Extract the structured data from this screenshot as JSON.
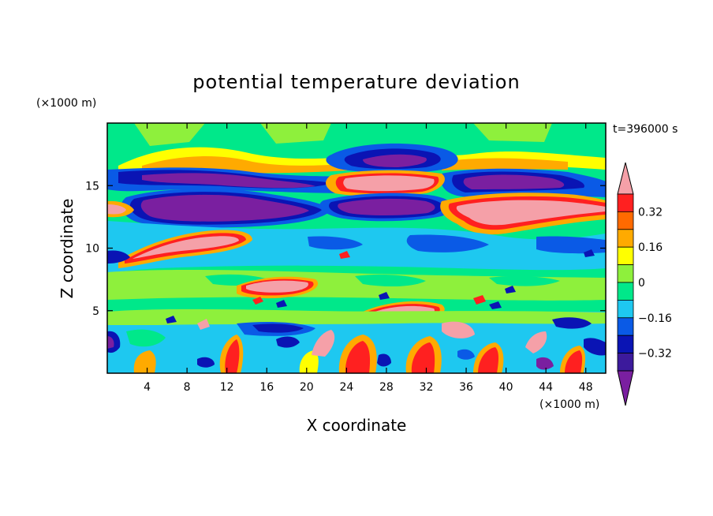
{
  "chart_data": {
    "type": "heatmap",
    "title": "potential temperature deviation",
    "xlabel": "X coordinate",
    "ylabel": "Z coordinate",
    "x_unit": "(×1000 m)",
    "y_unit": "(×1000 m)",
    "time_label": "t=396000 s",
    "xlim": [
      0,
      50
    ],
    "ylim": [
      0,
      20
    ],
    "x_ticks": [
      4,
      8,
      12,
      16,
      20,
      24,
      28,
      32,
      36,
      40,
      44,
      48
    ],
    "y_ticks": [
      5,
      10,
      15
    ],
    "colorbar": {
      "levels": [
        -0.4,
        -0.32,
        -0.24,
        -0.16,
        -0.08,
        0,
        0.08,
        0.16,
        0.24,
        0.32,
        0.4
      ],
      "tick_labels": [
        "0.32",
        "0.16",
        "0",
        "−0.16",
        "−0.32"
      ],
      "tick_values": [
        0.32,
        0.16,
        0,
        -0.16,
        -0.32
      ],
      "colors": [
        "#7a1fa0",
        "#3c1a9c",
        "#0a14b4",
        "#0a5ae6",
        "#1ec8f0",
        "#00e88a",
        "#8ef03c",
        "#ffff00",
        "#ffaa00",
        "#ff6a00",
        "#ff2020",
        "#f5a0a8"
      ],
      "extend": "both"
    }
  }
}
